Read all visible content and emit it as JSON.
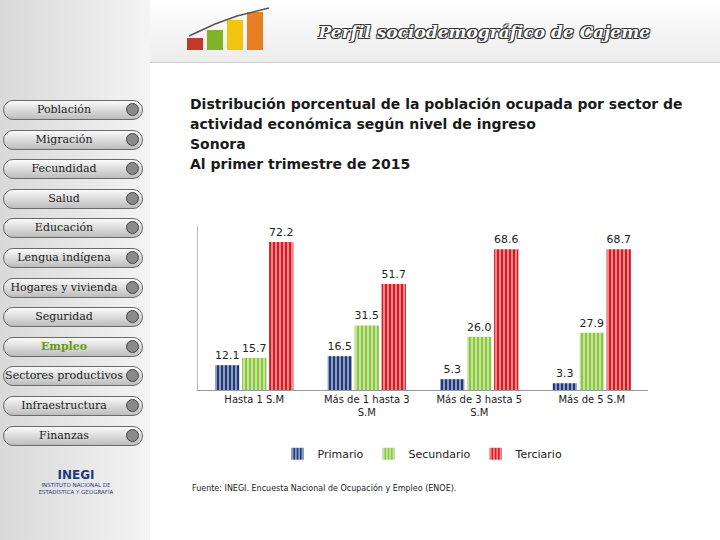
{
  "header": {
    "title": "Perfil sociodemográfico de Cajeme"
  },
  "menu": {
    "items": [
      "Población",
      "Migración",
      "Fecundidad",
      "Salud",
      "Educación",
      "Lengua indígena",
      "Hogares y vivienda",
      "Seguridad",
      "Empleo",
      "Sectores productivos",
      "Infraestructura",
      "Finanzas"
    ],
    "active": "Empleo"
  },
  "logo": {
    "name": "INEGI",
    "caption": "INSTITUTO NACIONAL DE ESTADÍSTICA Y GEOGRAFÍA"
  },
  "chart_data": {
    "type": "bar",
    "title": "Distribución porcentual de la población ocupada por sector de actividad económica según nivel de ingreso\nSonora\nAl primer trimestre de 2015",
    "categories": [
      "Hasta 1 S.M",
      "Más de 1 hasta 3 S.M",
      "Más de 3 hasta 5 S.M",
      "Más de 5 S.M"
    ],
    "series": [
      {
        "name": "Primario",
        "color": "#1f3a7a",
        "values": [
          12.1,
          16.5,
          5.3,
          3.3
        ],
        "value_labels": [
          "12.1",
          "16.5",
          "5.3",
          "3.3"
        ]
      },
      {
        "name": "Secundario",
        "color": "#8dc63f",
        "values": [
          15.7,
          31.5,
          26.0,
          27.9
        ],
        "value_labels": [
          "15.7",
          "31.5",
          "26.0",
          "27.9"
        ]
      },
      {
        "name": "Terciario",
        "color": "#e0161e",
        "values": [
          72.2,
          51.7,
          68.6,
          68.7
        ],
        "value_labels": [
          "72.2",
          "51.7",
          "68.6",
          "68.7"
        ]
      }
    ],
    "ylim": [
      0,
      80
    ],
    "grid": false,
    "legend": "bottom",
    "data_labels": true,
    "tick_labels": "x",
    "source": "Fuente: INEGI. Encuesta Nacional de Ocupación y Empleo (ENOE)."
  }
}
